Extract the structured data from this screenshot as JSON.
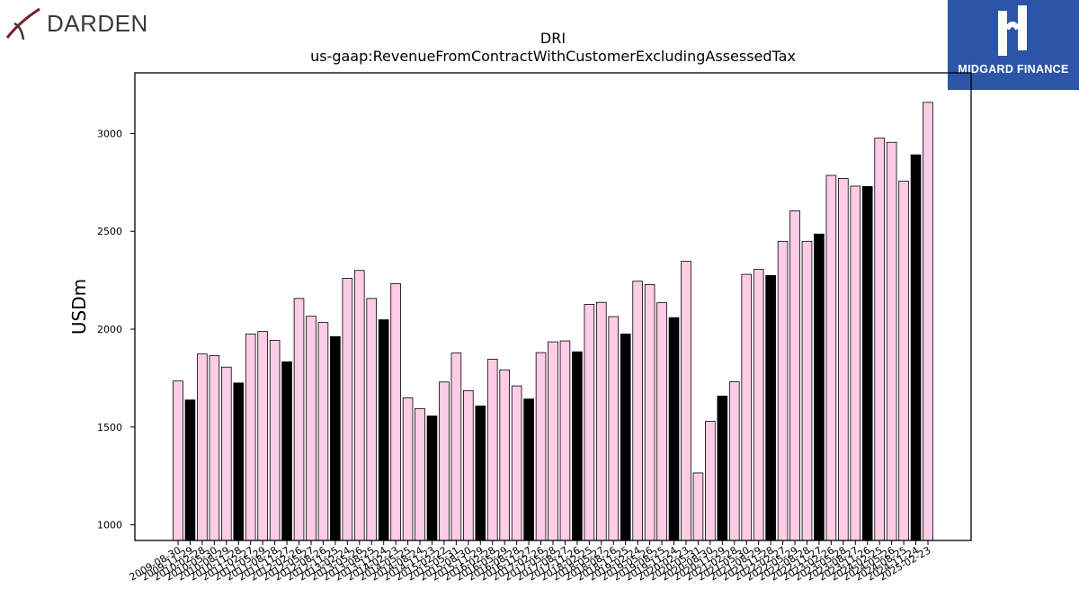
{
  "header": {
    "left_logo_text": "DARDEN",
    "right_logo_text": "MIDGARD FINANCE"
  },
  "chart_data": {
    "type": "bar",
    "title": "DRI",
    "subtitle": "us-gaap:RevenueFromContractWithCustomerExcludingAssessedTax",
    "xlabel": "",
    "ylabel": "USDm",
    "ylim": [
      920,
      3310
    ],
    "yticks": [
      1000,
      1500,
      2000,
      2500,
      3000
    ],
    "colors": {
      "quarter": "#ffcce6",
      "annual": "#000000",
      "edge": "#000000"
    },
    "categories": [
      "2009-08-30",
      "2009-11-29",
      "2010-02-28",
      "2010-05-30",
      "2010-08-29",
      "2010-11-28",
      "2011-02-27",
      "2011-05-29",
      "2011-08-28",
      "2011-11-27",
      "2012-02-26",
      "2012-05-27",
      "2012-08-26",
      "2012-11-25",
      "2013-02-24",
      "2013-05-26",
      "2013-08-25",
      "2013-11-24",
      "2014-02-23",
      "2014-05-25",
      "2014-08-24",
      "2014-11-23",
      "2015-02-22",
      "2015-05-31",
      "2015-08-30",
      "2015-11-29",
      "2016-02-28",
      "2016-05-29",
      "2016-08-28",
      "2016-11-27",
      "2017-02-26",
      "2017-05-28",
      "2017-08-27",
      "2017-11-26",
      "2018-02-25",
      "2018-05-27",
      "2018-08-26",
      "2018-11-25",
      "2019-02-24",
      "2019-05-26",
      "2019-08-25",
      "2019-11-24",
      "2020-02-23",
      "2020-05-31",
      "2020-08-30",
      "2020-11-29",
      "2021-02-28",
      "2021-05-30",
      "2021-08-29",
      "2021-11-28",
      "2022-02-27",
      "2022-05-29",
      "2022-08-28",
      "2022-11-27",
      "2023-02-26",
      "2023-05-28",
      "2023-08-27",
      "2023-11-26",
      "2024-02-25",
      "2024-05-26",
      "2024-08-25",
      "2024-11-24",
      "2025-02-23"
    ],
    "values": [
      1735,
      1638,
      1873,
      1865,
      1806,
      1725,
      1975,
      1988,
      1943,
      1833,
      2157,
      2066,
      2034,
      1962,
      2260,
      2300,
      2157,
      2048,
      2232,
      1649,
      1594,
      1556,
      1730,
      1878,
      1686,
      1607,
      1846,
      1792,
      1710,
      1643,
      1880,
      1935,
      1940,
      1884,
      2127,
      2137,
      2064,
      1975,
      2245,
      2228,
      2135,
      2059,
      2347,
      1265,
      1529,
      1658,
      1731,
      2280,
      2305,
      2274,
      2449,
      2605,
      2449,
      2486,
      2786,
      2770,
      2731,
      2729,
      2976,
      2955,
      2757,
      2891,
      3159
    ],
    "annual": [
      false,
      true,
      false,
      false,
      false,
      true,
      false,
      false,
      false,
      true,
      false,
      false,
      false,
      true,
      false,
      false,
      false,
      true,
      false,
      false,
      false,
      true,
      false,
      false,
      false,
      true,
      false,
      false,
      false,
      true,
      false,
      false,
      false,
      true,
      false,
      false,
      false,
      true,
      false,
      false,
      false,
      true,
      false,
      false,
      false,
      true,
      false,
      false,
      false,
      true,
      false,
      false,
      false,
      true,
      false,
      false,
      false,
      true,
      false,
      false,
      false,
      true,
      false
    ]
  }
}
